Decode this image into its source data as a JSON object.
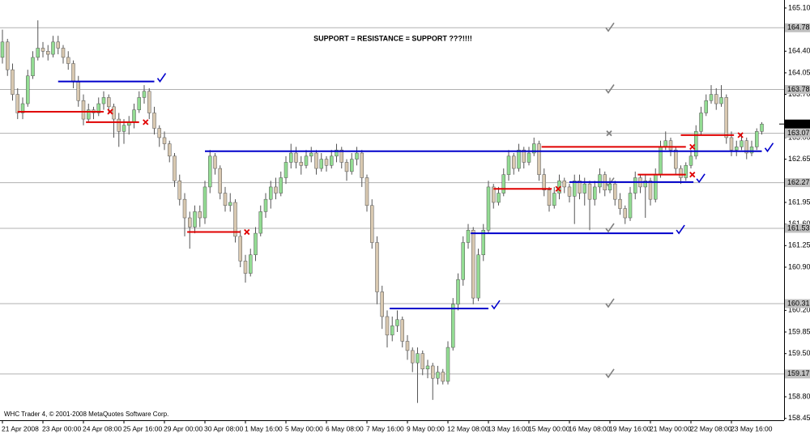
{
  "chart_data": {
    "type": "candlestick",
    "title": "SUPPORT = RESISTANCE = SUPPORT ???!!!!",
    "copyright": "WHC Trader 4, © 2001-2008 MetaQuotes Software Corp.",
    "up_color": "#93dc93",
    "down_color": "#d8c8b0",
    "wick_color": "#555555",
    "ylim": [
      158.42,
      165.23
    ],
    "yticks": [
      {
        "value": 165.1,
        "label": "165.10"
      },
      {
        "value": 164.4,
        "label": "164.40"
      },
      164.05,
      {
        "value": 163.7,
        "label": "163.70"
      },
      {
        "value": 163.0,
        "label": "163.00"
      },
      162.65,
      161.95,
      {
        "value": 161.6,
        "label": "161.60"
      },
      161.25,
      {
        "value": 160.9,
        "label": "160.90"
      },
      {
        "value": 160.2,
        "label": "160.20"
      },
      159.85,
      {
        "value": 159.5,
        "label": "159.50"
      },
      {
        "value": 158.8,
        "label": "158.80"
      },
      158.45
    ],
    "categories": [
      "21 Apr 2008",
      null,
      null,
      null,
      null,
      null,
      null,
      null,
      "23 Apr 00:00",
      null,
      null,
      null,
      null,
      null,
      null,
      null,
      "24 Apr 08:00",
      null,
      null,
      null,
      null,
      null,
      null,
      null,
      "25 Apr 16:00",
      null,
      null,
      null,
      null,
      null,
      null,
      null,
      "29 Apr 00:00",
      null,
      null,
      null,
      null,
      null,
      null,
      null,
      "30 Apr 08:00",
      null,
      null,
      null,
      null,
      null,
      null,
      null,
      "1 May 16:00",
      null,
      null,
      null,
      null,
      null,
      null,
      null,
      "5 May 00:00",
      null,
      null,
      null,
      null,
      null,
      null,
      null,
      "6 May 08:00",
      null,
      null,
      null,
      null,
      null,
      null,
      null,
      "7 May 16:00",
      null,
      null,
      null,
      null,
      null,
      null,
      null,
      "9 May 00:00",
      null,
      null,
      null,
      null,
      null,
      null,
      null,
      "12 May 08:00",
      null,
      null,
      null,
      null,
      null,
      null,
      null,
      "13 May 16:00",
      null,
      null,
      null,
      null,
      null,
      null,
      null,
      "15 May 00:00",
      null,
      null,
      null,
      null,
      null,
      null,
      null,
      "16 May 08:00",
      null,
      null,
      null,
      null,
      null,
      null,
      null,
      "19 May 16:00",
      null,
      null,
      null,
      null,
      null,
      null,
      null,
      "21 May 00:00",
      null,
      null,
      null,
      null,
      null,
      null,
      null,
      "22 May 08:00",
      null,
      null,
      null,
      null,
      null,
      null,
      null,
      "23 May 16:00",
      null,
      null,
      null,
      null,
      null,
      null
    ],
    "candles": [
      [
        164.3,
        164.75,
        164.2,
        164.55
      ],
      [
        164.55,
        164.6,
        164.0,
        164.1
      ],
      [
        164.1,
        164.2,
        163.6,
        163.7
      ],
      [
        163.7,
        163.8,
        163.3,
        163.4
      ],
      [
        163.4,
        163.65,
        163.3,
        163.55
      ],
      [
        163.55,
        164.1,
        163.5,
        164.0
      ],
      [
        164.0,
        164.4,
        163.95,
        164.3
      ],
      [
        164.3,
        164.9,
        164.25,
        164.45
      ],
      [
        164.45,
        164.55,
        164.3,
        164.4
      ],
      [
        164.4,
        164.5,
        164.25,
        164.35
      ],
      [
        164.35,
        164.65,
        164.3,
        164.55
      ],
      [
        164.55,
        164.65,
        164.35,
        164.45
      ],
      [
        164.45,
        164.5,
        164.2,
        164.3
      ],
      [
        164.3,
        164.4,
        164.1,
        164.2
      ],
      [
        164.2,
        164.25,
        163.8,
        163.9
      ],
      [
        163.9,
        164.0,
        163.5,
        163.6
      ],
      [
        163.6,
        163.7,
        163.2,
        163.3
      ],
      [
        163.3,
        163.55,
        163.25,
        163.45
      ],
      [
        163.45,
        163.5,
        163.3,
        163.4
      ],
      [
        163.4,
        163.65,
        163.35,
        163.55
      ],
      [
        163.55,
        163.75,
        163.45,
        163.65
      ],
      [
        163.65,
        163.7,
        163.4,
        163.5
      ],
      [
        163.5,
        163.55,
        163.0,
        163.3
      ],
      [
        163.3,
        163.4,
        162.85,
        163.1
      ],
      [
        163.1,
        163.3,
        162.9,
        163.2
      ],
      [
        163.2,
        163.35,
        163.05,
        163.25
      ],
      [
        163.25,
        163.55,
        163.15,
        163.45
      ],
      [
        163.45,
        163.75,
        163.4,
        163.65
      ],
      [
        163.65,
        163.85,
        163.55,
        163.75
      ],
      [
        163.75,
        163.8,
        163.3,
        163.4
      ],
      [
        163.4,
        163.5,
        163.05,
        163.15
      ],
      [
        163.15,
        163.2,
        162.85,
        163.0
      ],
      [
        163.0,
        163.1,
        162.8,
        162.9
      ],
      [
        162.9,
        162.95,
        162.6,
        162.7
      ],
      [
        162.7,
        162.75,
        162.2,
        162.3
      ],
      [
        162.3,
        162.4,
        161.9,
        162.0
      ],
      [
        162.0,
        162.1,
        161.4,
        161.7
      ],
      [
        161.7,
        161.8,
        161.2,
        161.55
      ],
      [
        161.55,
        161.9,
        161.45,
        161.8
      ],
      [
        161.8,
        161.9,
        161.55,
        161.7
      ],
      [
        161.7,
        162.3,
        161.6,
        162.2
      ],
      [
        162.2,
        162.8,
        162.1,
        162.7
      ],
      [
        162.7,
        162.75,
        162.4,
        162.5
      ],
      [
        162.5,
        162.55,
        162.0,
        162.1
      ],
      [
        162.1,
        162.2,
        161.8,
        161.9
      ],
      [
        161.9,
        162.1,
        161.8,
        161.95
      ],
      [
        161.95,
        162.0,
        161.3,
        161.4
      ],
      [
        161.4,
        161.5,
        160.9,
        161.0
      ],
      [
        161.0,
        161.1,
        160.65,
        160.8
      ],
      [
        160.8,
        161.2,
        160.75,
        161.1
      ],
      [
        161.1,
        161.55,
        161.0,
        161.45
      ],
      [
        161.45,
        161.9,
        161.4,
        161.8
      ],
      [
        161.8,
        162.1,
        161.7,
        162.0
      ],
      [
        162.0,
        162.3,
        161.85,
        162.2
      ],
      [
        162.2,
        162.35,
        162.0,
        162.1
      ],
      [
        162.1,
        162.45,
        162.05,
        162.35
      ],
      [
        162.35,
        162.7,
        162.25,
        162.6
      ],
      [
        162.6,
        162.9,
        162.5,
        162.75
      ],
      [
        162.75,
        162.85,
        162.5,
        162.6
      ],
      [
        162.6,
        162.7,
        162.4,
        162.55
      ],
      [
        162.55,
        162.8,
        162.5,
        162.7
      ],
      [
        162.7,
        162.85,
        162.6,
        162.75
      ],
      [
        162.75,
        162.8,
        162.4,
        162.5
      ],
      [
        162.5,
        162.75,
        162.45,
        162.65
      ],
      [
        162.65,
        162.7,
        162.45,
        162.55
      ],
      [
        162.55,
        162.8,
        162.5,
        162.7
      ],
      [
        162.7,
        162.9,
        162.6,
        162.8
      ],
      [
        162.8,
        162.85,
        162.5,
        162.6
      ],
      [
        162.6,
        162.65,
        162.3,
        162.45
      ],
      [
        162.45,
        162.75,
        162.4,
        162.65
      ],
      [
        162.65,
        162.85,
        162.55,
        162.75
      ],
      [
        162.75,
        162.8,
        162.2,
        162.35
      ],
      [
        162.35,
        162.4,
        161.8,
        161.9
      ],
      [
        161.9,
        162.0,
        161.2,
        161.3
      ],
      [
        161.3,
        161.4,
        160.3,
        160.5
      ],
      [
        160.5,
        160.6,
        159.9,
        160.1
      ],
      [
        160.1,
        160.2,
        159.6,
        159.8
      ],
      [
        159.8,
        160.1,
        159.7,
        159.95
      ],
      [
        159.95,
        160.2,
        159.85,
        160.05
      ],
      [
        160.05,
        160.1,
        159.6,
        159.7
      ],
      [
        159.7,
        159.8,
        159.4,
        159.55
      ],
      [
        159.55,
        159.6,
        159.2,
        159.35
      ],
      [
        159.35,
        159.6,
        158.7,
        159.5
      ],
      [
        159.5,
        159.55,
        159.15,
        159.25
      ],
      [
        159.25,
        159.4,
        159.1,
        159.3
      ],
      [
        159.3,
        159.35,
        158.75,
        159.1
      ],
      [
        159.1,
        159.3,
        159.0,
        159.2
      ],
      [
        159.2,
        159.25,
        159.0,
        159.05
      ],
      [
        159.05,
        159.7,
        159.0,
        159.6
      ],
      [
        159.6,
        160.4,
        159.55,
        160.3
      ],
      [
        160.3,
        160.8,
        160.2,
        160.7
      ],
      [
        160.7,
        161.4,
        160.6,
        161.3
      ],
      [
        161.3,
        161.6,
        161.2,
        161.5
      ],
      [
        161.5,
        161.55,
        160.3,
        160.4
      ],
      [
        160.4,
        161.2,
        160.35,
        161.1
      ],
      [
        161.1,
        161.6,
        161.0,
        161.5
      ],
      [
        161.5,
        162.3,
        161.45,
        162.2
      ],
      [
        162.2,
        162.25,
        161.85,
        161.95
      ],
      [
        161.95,
        162.2,
        161.9,
        162.1
      ],
      [
        162.1,
        162.5,
        162.05,
        162.4
      ],
      [
        162.4,
        162.8,
        162.3,
        162.7
      ],
      [
        162.7,
        162.75,
        162.4,
        162.5
      ],
      [
        162.5,
        162.9,
        162.45,
        162.8
      ],
      [
        162.8,
        162.85,
        162.5,
        162.6
      ],
      [
        162.6,
        162.85,
        162.55,
        162.75
      ],
      [
        162.75,
        163.0,
        162.7,
        162.9
      ],
      [
        162.9,
        162.95,
        162.3,
        162.4
      ],
      [
        162.4,
        162.5,
        162.05,
        162.15
      ],
      [
        162.15,
        162.2,
        161.8,
        161.9
      ],
      [
        161.9,
        162.2,
        161.85,
        162.1
      ],
      [
        162.1,
        162.4,
        162.0,
        162.3
      ],
      [
        162.3,
        162.35,
        162.1,
        162.2
      ],
      [
        162.2,
        162.25,
        161.95,
        162.05
      ],
      [
        162.05,
        162.4,
        161.6,
        162.3
      ],
      [
        162.3,
        162.4,
        162.0,
        162.1
      ],
      [
        162.1,
        162.35,
        161.9,
        162.25
      ],
      [
        162.25,
        162.3,
        161.5,
        162.0
      ],
      [
        162.0,
        162.3,
        161.9,
        162.2
      ],
      [
        162.2,
        162.5,
        162.1,
        162.4
      ],
      [
        162.4,
        162.45,
        162.05,
        162.15
      ],
      [
        162.15,
        162.35,
        162.1,
        162.25
      ],
      [
        162.25,
        162.3,
        161.9,
        162.0
      ],
      [
        162.0,
        162.1,
        161.75,
        161.85
      ],
      [
        161.85,
        161.9,
        161.6,
        161.7
      ],
      [
        161.7,
        162.2,
        161.65,
        162.1
      ],
      [
        162.1,
        162.45,
        162.0,
        162.35
      ],
      [
        162.35,
        162.4,
        162.1,
        162.2
      ],
      [
        162.2,
        162.4,
        161.7,
        162.3
      ],
      [
        162.3,
        162.35,
        161.9,
        162.0
      ],
      [
        162.0,
        162.5,
        161.95,
        162.4
      ],
      [
        162.4,
        162.95,
        162.35,
        162.85
      ],
      [
        162.85,
        163.1,
        162.8,
        162.95
      ],
      [
        162.95,
        163.0,
        162.7,
        162.8
      ],
      [
        162.8,
        162.85,
        162.4,
        162.5
      ],
      [
        162.5,
        162.55,
        162.25,
        162.35
      ],
      [
        162.35,
        162.6,
        162.3,
        162.55
      ],
      [
        162.55,
        162.8,
        162.5,
        162.7
      ],
      [
        162.7,
        163.2,
        162.65,
        163.1
      ],
      [
        163.1,
        163.5,
        163.05,
        163.4
      ],
      [
        163.4,
        163.7,
        163.35,
        163.6
      ],
      [
        163.6,
        163.85,
        163.55,
        163.7
      ],
      [
        163.7,
        163.8,
        163.45,
        163.55
      ],
      [
        163.55,
        163.85,
        163.5,
        163.65
      ],
      [
        163.65,
        163.7,
        162.9,
        163.0
      ],
      [
        163.0,
        163.1,
        162.7,
        162.8
      ],
      [
        162.8,
        162.95,
        162.7,
        162.85
      ],
      [
        162.85,
        163.05,
        162.8,
        162.95
      ],
      [
        162.95,
        163.0,
        162.65,
        162.75
      ],
      [
        162.75,
        162.95,
        162.7,
        162.85
      ],
      [
        162.85,
        163.15,
        162.8,
        163.1
      ],
      [
        163.1,
        163.25,
        163.05,
        163.22
      ]
    ],
    "levels": [
      {
        "value": 164.78,
        "marker": "check"
      },
      {
        "value": 163.78,
        "marker": "check"
      },
      {
        "value": 163.07,
        "marker": "cross"
      },
      {
        "value": 162.27,
        "marker": "check"
      },
      {
        "value": 161.53,
        "marker": "check"
      },
      {
        "value": 160.31,
        "marker": "check"
      },
      {
        "value": 159.17,
        "marker": "check"
      }
    ],
    "segments": [
      {
        "value": 163.91,
        "from": 11,
        "to": 30,
        "color": "#0000cc",
        "marker": "check"
      },
      {
        "value": 162.78,
        "from": 40,
        "to": 150,
        "color": "#0000cc",
        "marker": "check"
      },
      {
        "value": 160.23,
        "from": 76.5,
        "to": 96,
        "color": "#0000cc",
        "marker": "check"
      },
      {
        "value": 161.45,
        "from": 92.5,
        "to": 132.5,
        "color": "#0000cc",
        "marker": "check"
      },
      {
        "value": 162.28,
        "from": 112,
        "to": 136.5,
        "color": "#0000cc",
        "marker": "check"
      },
      {
        "value": 163.42,
        "from": 3,
        "to": 20,
        "color": "#e00000",
        "marker": "cross"
      },
      {
        "value": 163.25,
        "from": 16.5,
        "to": 27,
        "color": "#e00000",
        "marker": "cross"
      },
      {
        "value": 161.47,
        "from": 36.5,
        "to": 47,
        "color": "#e00000",
        "marker": "cross"
      },
      {
        "value": 162.17,
        "from": 97,
        "to": 108.5,
        "color": "#e00000",
        "marker": "cross"
      },
      {
        "value": 162.85,
        "from": 106.5,
        "to": 135,
        "color": "#e00000",
        "marker": "cross"
      },
      {
        "value": 162.4,
        "from": 125.5,
        "to": 135,
        "color": "#e00000",
        "marker": "cross"
      },
      {
        "value": 163.04,
        "from": 134,
        "to": 144.5,
        "color": "#e00000",
        "marker": "cross"
      }
    ]
  }
}
